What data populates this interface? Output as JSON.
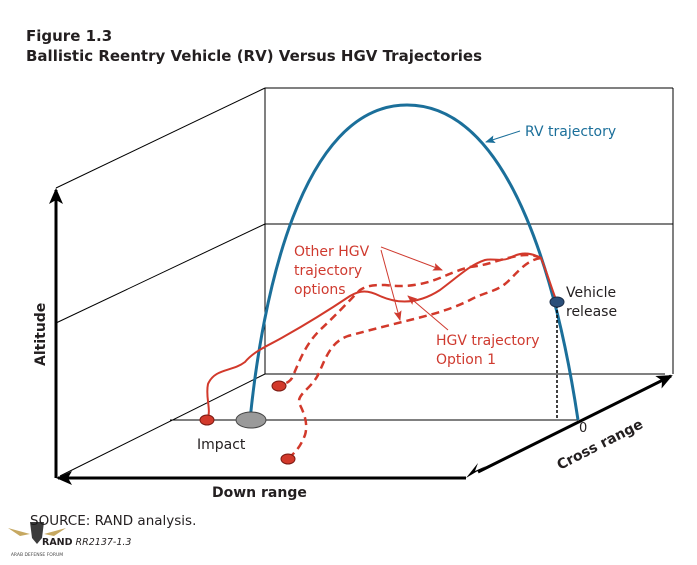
{
  "figure": {
    "number": "Figure 1.3",
    "title": "Ballistic Reentry Vehicle (RV) Versus HGV Trajectories"
  },
  "axes": {
    "altitude": "Altitude",
    "down_range": "Down range",
    "cross_range": "Cross range",
    "origin_label": "0"
  },
  "labels": {
    "rv_trajectory": "RV trajectory",
    "other_hgv_line1": "Other HGV",
    "other_hgv_line2": "trajectory",
    "other_hgv_line3": "options",
    "hgv_option1_line1": "HGV trajectory",
    "hgv_option1_line2": "Option 1",
    "vehicle_release_line1": "Vehicle",
    "vehicle_release_line2": "release",
    "impact": "Impact"
  },
  "colors": {
    "rv": "#1b6f9a",
    "hgv": "#d2392b",
    "hgv_text": "#cf3a2f",
    "impact_gray": "#9a9a9a"
  },
  "footer": {
    "source": "SOURCE: RAND analysis.",
    "rand_prefix": "RAND",
    "rand_code": "RR2137-1.3"
  },
  "watermark": {
    "line1": "ARAB DEFENSE FORUM"
  }
}
